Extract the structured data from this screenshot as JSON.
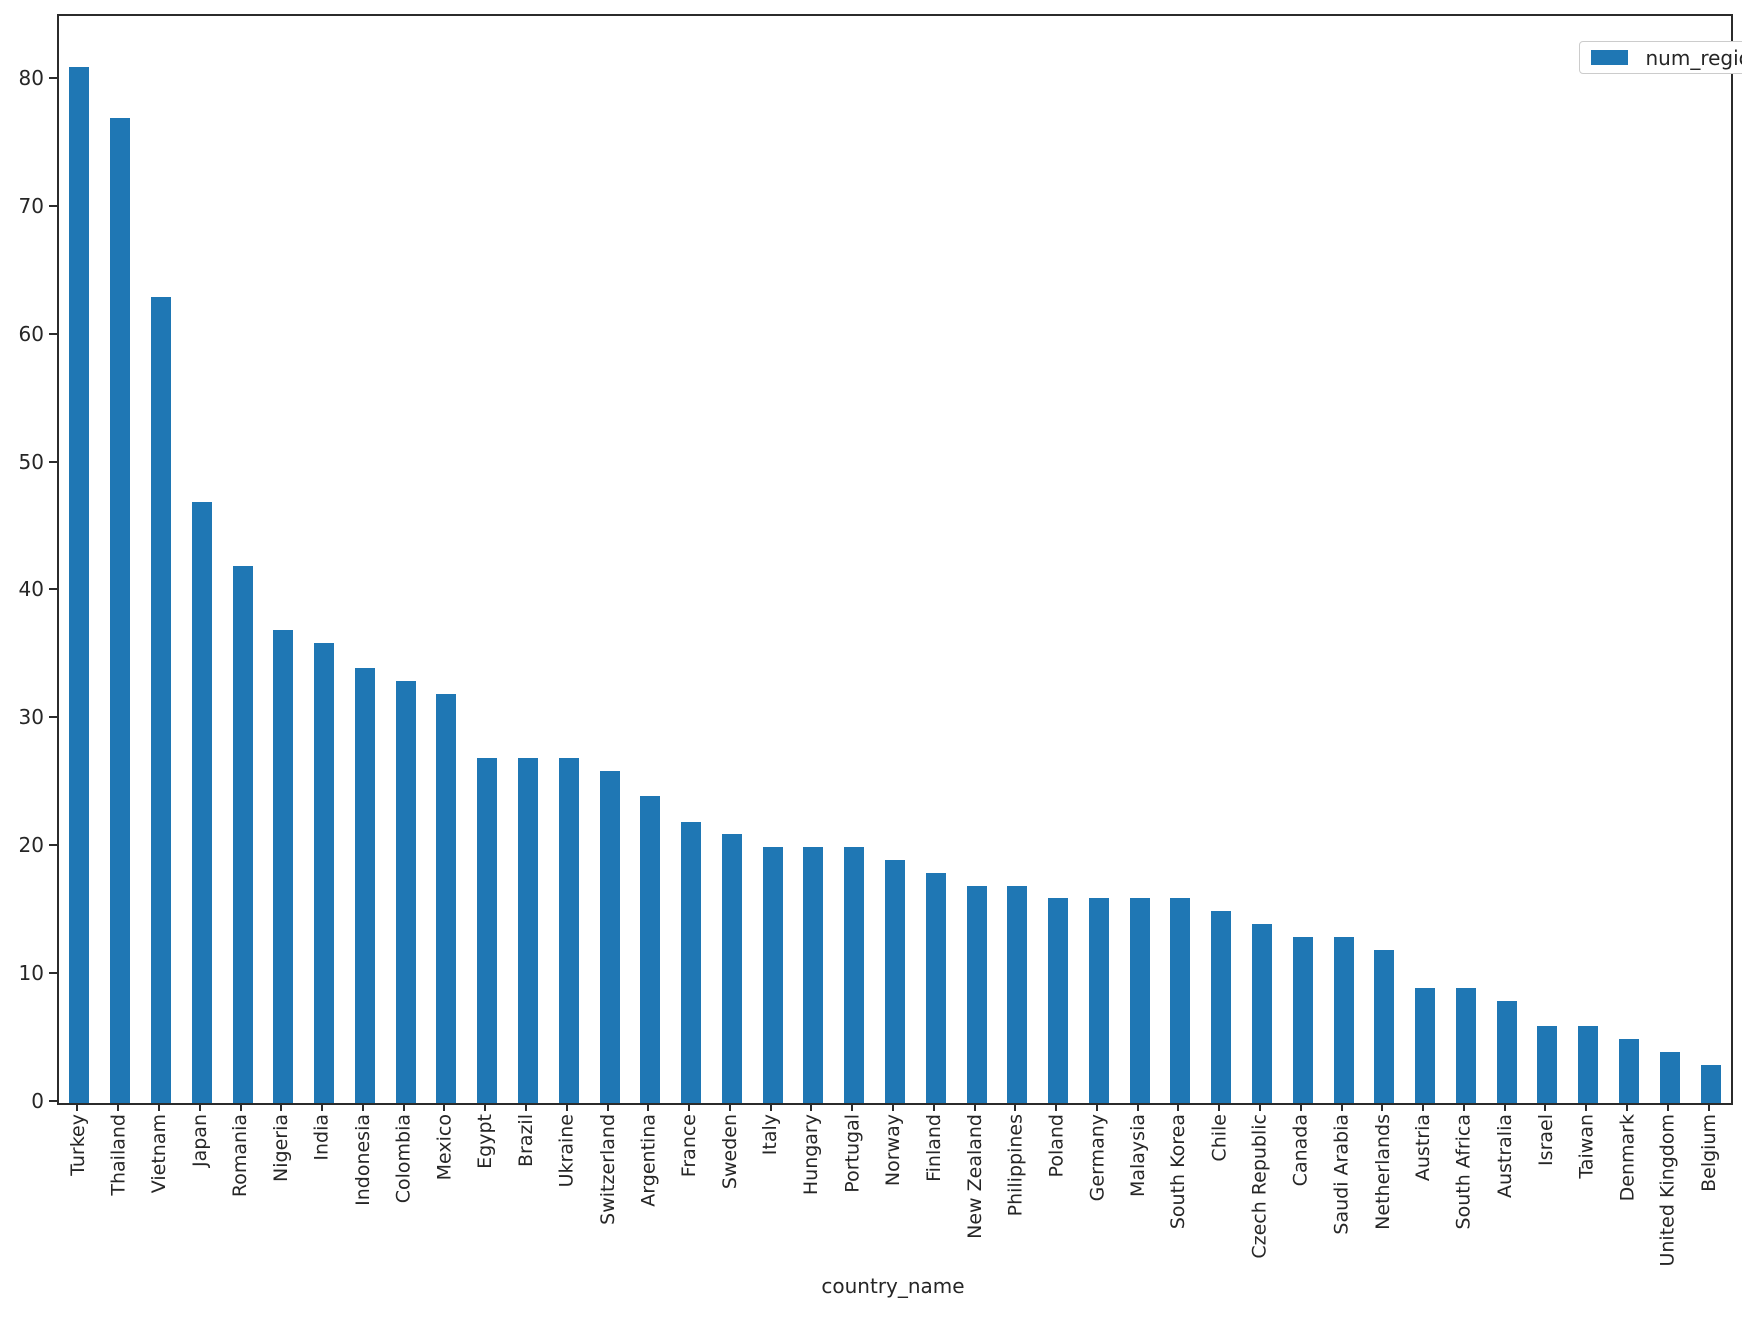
{
  "chart_data": {
    "type": "bar",
    "title": "",
    "xlabel": "country_name",
    "ylabel": "",
    "legend": [
      "num_regions"
    ],
    "legend_position": "upper right",
    "bar_color": "#1f77b4",
    "axis_color": "#2b2b2b",
    "ylim": [
      0,
      85
    ],
    "yticks": [
      0,
      10,
      20,
      30,
      40,
      50,
      60,
      70,
      80
    ],
    "grid": false,
    "categories": [
      "Turkey",
      "Thailand",
      "Vietnam",
      "Japan",
      "Romania",
      "Nigeria",
      "India",
      "Indonesia",
      "Colombia",
      "Mexico",
      "Egypt",
      "Brazil",
      "Ukraine",
      "Switzerland",
      "Argentina",
      "France",
      "Sweden",
      "Italy",
      "Hungary",
      "Portugal",
      "Norway",
      "Finland",
      "New Zealand",
      "Philippines",
      "Poland",
      "Germany",
      "Malaysia",
      "South Korea",
      "Chile",
      "Czech Republic",
      "Canada",
      "Saudi Arabia",
      "Netherlands",
      "Austria",
      "South Africa",
      "Australia",
      "Israel",
      "Taiwan",
      "Denmark",
      "United Kingdom",
      "Belgium"
    ],
    "values": [
      81,
      77,
      63,
      47,
      42,
      37,
      36,
      34,
      33,
      32,
      27,
      27,
      27,
      26,
      24,
      22,
      21,
      20,
      20,
      20,
      19,
      18,
      17,
      17,
      16,
      16,
      16,
      16,
      15,
      14,
      13,
      13,
      12,
      9,
      9,
      8,
      6,
      6,
      5,
      4,
      3
    ]
  }
}
